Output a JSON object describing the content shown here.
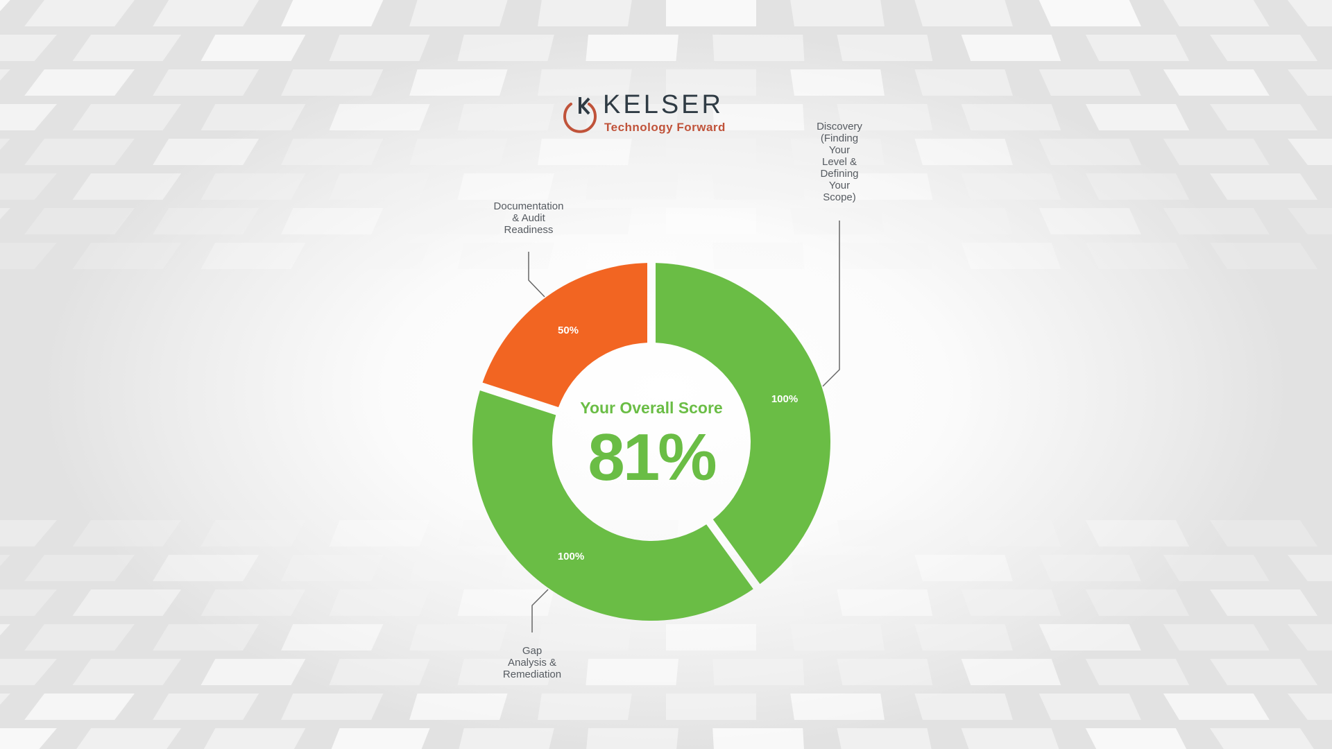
{
  "logo": {
    "brand": "KELSER",
    "tagline": "Technology Forward"
  },
  "chart_data": {
    "type": "pie",
    "donut": true,
    "center_title": "Your Overall Score",
    "center_value": "81%",
    "slices": [
      {
        "label": "Discovery (Finding Your Level & Defining Your Scope)",
        "label_display": "Discovery\n(Finding\nYour\nLevel &\nDefining\nYour\nScope)",
        "value": 100,
        "value_label": "100%",
        "color": "#6abd45"
      },
      {
        "label": "Gap Analysis & Remediation",
        "label_display": "Gap\nAnalysis &\nRemediation",
        "value": 100,
        "value_label": "100%",
        "color": "#6abd45"
      },
      {
        "label": "Documentation & Audit Readiness",
        "label_display": "Documentation\n& Audit\nReadiness",
        "value": 50,
        "value_label": "50%",
        "color": "#f26522"
      }
    ]
  }
}
